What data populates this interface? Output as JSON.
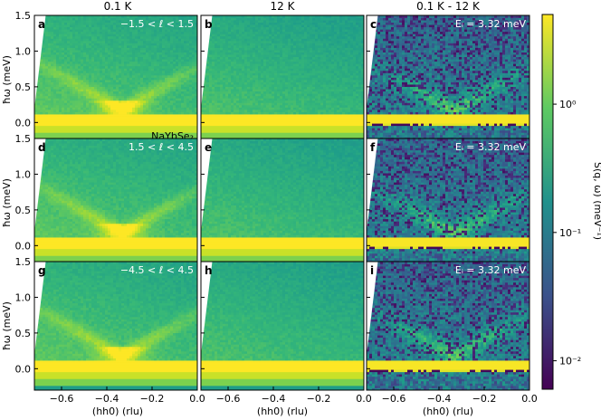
{
  "chart_data": {
    "type": "heatmap",
    "column_titles": [
      "0.1 K",
      "12 K",
      "0.1 K - 12 K"
    ],
    "xlabel": "(hh0) (rlu)",
    "ylabel": "ħω (meV)",
    "xlim": [
      -0.72,
      0.0
    ],
    "ylim": [
      -0.3,
      1.5
    ],
    "x_ticks": [
      -0.6,
      -0.4,
      -0.2,
      0.0
    ],
    "x_tick_labels": [
      "−0.6",
      "−0.4",
      "−0.2",
      "0.0"
    ],
    "y_ticks": [
      0.0,
      0.5,
      1.0,
      1.5
    ],
    "y_tick_labels": [
      "0.0",
      "0.5",
      "1.0",
      "1.5"
    ],
    "colorbar": {
      "label": "S(q, ω)  (meV⁻¹)",
      "scale": "log",
      "range": [
        0.006,
        5
      ],
      "ticks": [
        1,
        0.1,
        0.01
      ],
      "tick_labels": [
        "10⁰",
        "10⁻¹",
        "10⁻²"
      ],
      "colormap": "viridis"
    },
    "grid": false,
    "panels": [
      {
        "letter": "a",
        "row": 0,
        "col": 0,
        "annotation": "−1.5 < ℓ < 1.5",
        "sample": "NaYbSe₂"
      },
      {
        "letter": "b",
        "row": 0,
        "col": 1,
        "annotation": ""
      },
      {
        "letter": "c",
        "row": 0,
        "col": 2,
        "annotation": "Eᵢ = 3.32 meV"
      },
      {
        "letter": "d",
        "row": 1,
        "col": 0,
        "annotation": "1.5 < ℓ < 4.5"
      },
      {
        "letter": "e",
        "row": 1,
        "col": 1,
        "annotation": ""
      },
      {
        "letter": "f",
        "row": 1,
        "col": 2,
        "annotation": "Eᵢ = 3.32 meV"
      },
      {
        "letter": "g",
        "row": 2,
        "col": 0,
        "annotation": "−4.5 < ℓ < 4.5"
      },
      {
        "letter": "h",
        "row": 2,
        "col": 1,
        "annotation": ""
      },
      {
        "letter": "i",
        "row": 2,
        "col": 2,
        "annotation": "Eᵢ = 3.32 meV"
      }
    ],
    "features": {
      "elastic_line_energy": 0.05,
      "spinon_vertex_q": -0.333
    }
  }
}
